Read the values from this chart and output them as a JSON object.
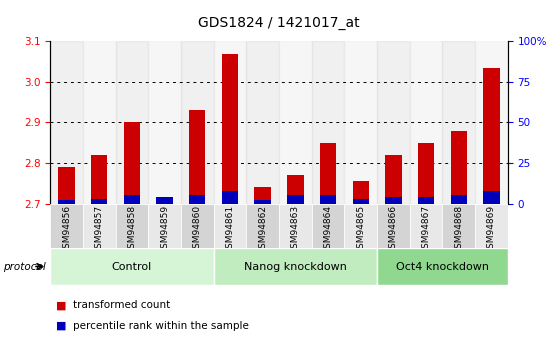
{
  "title": "GDS1824 / 1421017_at",
  "samples": [
    "GSM94856",
    "GSM94857",
    "GSM94858",
    "GSM94859",
    "GSM94860",
    "GSM94861",
    "GSM94862",
    "GSM94863",
    "GSM94864",
    "GSM94865",
    "GSM94866",
    "GSM94867",
    "GSM94868",
    "GSM94869"
  ],
  "transformed_count": [
    2.79,
    2.82,
    2.9,
    2.71,
    2.93,
    3.07,
    2.74,
    2.77,
    2.85,
    2.755,
    2.82,
    2.85,
    2.88,
    3.035
  ],
  "percentile_rank": [
    2,
    3,
    5,
    4,
    5,
    8,
    2,
    5,
    5,
    3,
    4,
    4,
    5,
    8
  ],
  "ylim_left": [
    2.7,
    3.1
  ],
  "ylim_right": [
    0,
    100
  ],
  "yticks_left": [
    2.7,
    2.8,
    2.9,
    3.0,
    3.1
  ],
  "yticks_right": [
    0,
    25,
    50,
    75,
    100
  ],
  "ytick_labels_right": [
    "0",
    "25",
    "50",
    "75",
    "100%"
  ],
  "groups": [
    {
      "label": "Control",
      "start": 0,
      "end": 5,
      "color": "#d6f5d6"
    },
    {
      "label": "Nanog knockdown",
      "start": 5,
      "end": 10,
      "color": "#c0ecc0"
    },
    {
      "label": "Oct4 knockdown",
      "start": 10,
      "end": 14,
      "color": "#90d890"
    }
  ],
  "bar_color_red": "#cc0000",
  "bar_color_blue": "#0000bb",
  "bg_color": "#ffffff",
  "tick_bg_even": "#d4d4d4",
  "tick_bg_odd": "#e8e8e8",
  "protocol_label": "protocol",
  "legend_items": [
    {
      "label": "transformed count",
      "color": "#cc0000"
    },
    {
      "label": "percentile rank within the sample",
      "color": "#0000bb"
    }
  ],
  "title_fontsize": 10,
  "axis_fontsize": 7.5,
  "tick_fontsize": 6.5,
  "group_fontsize": 8
}
